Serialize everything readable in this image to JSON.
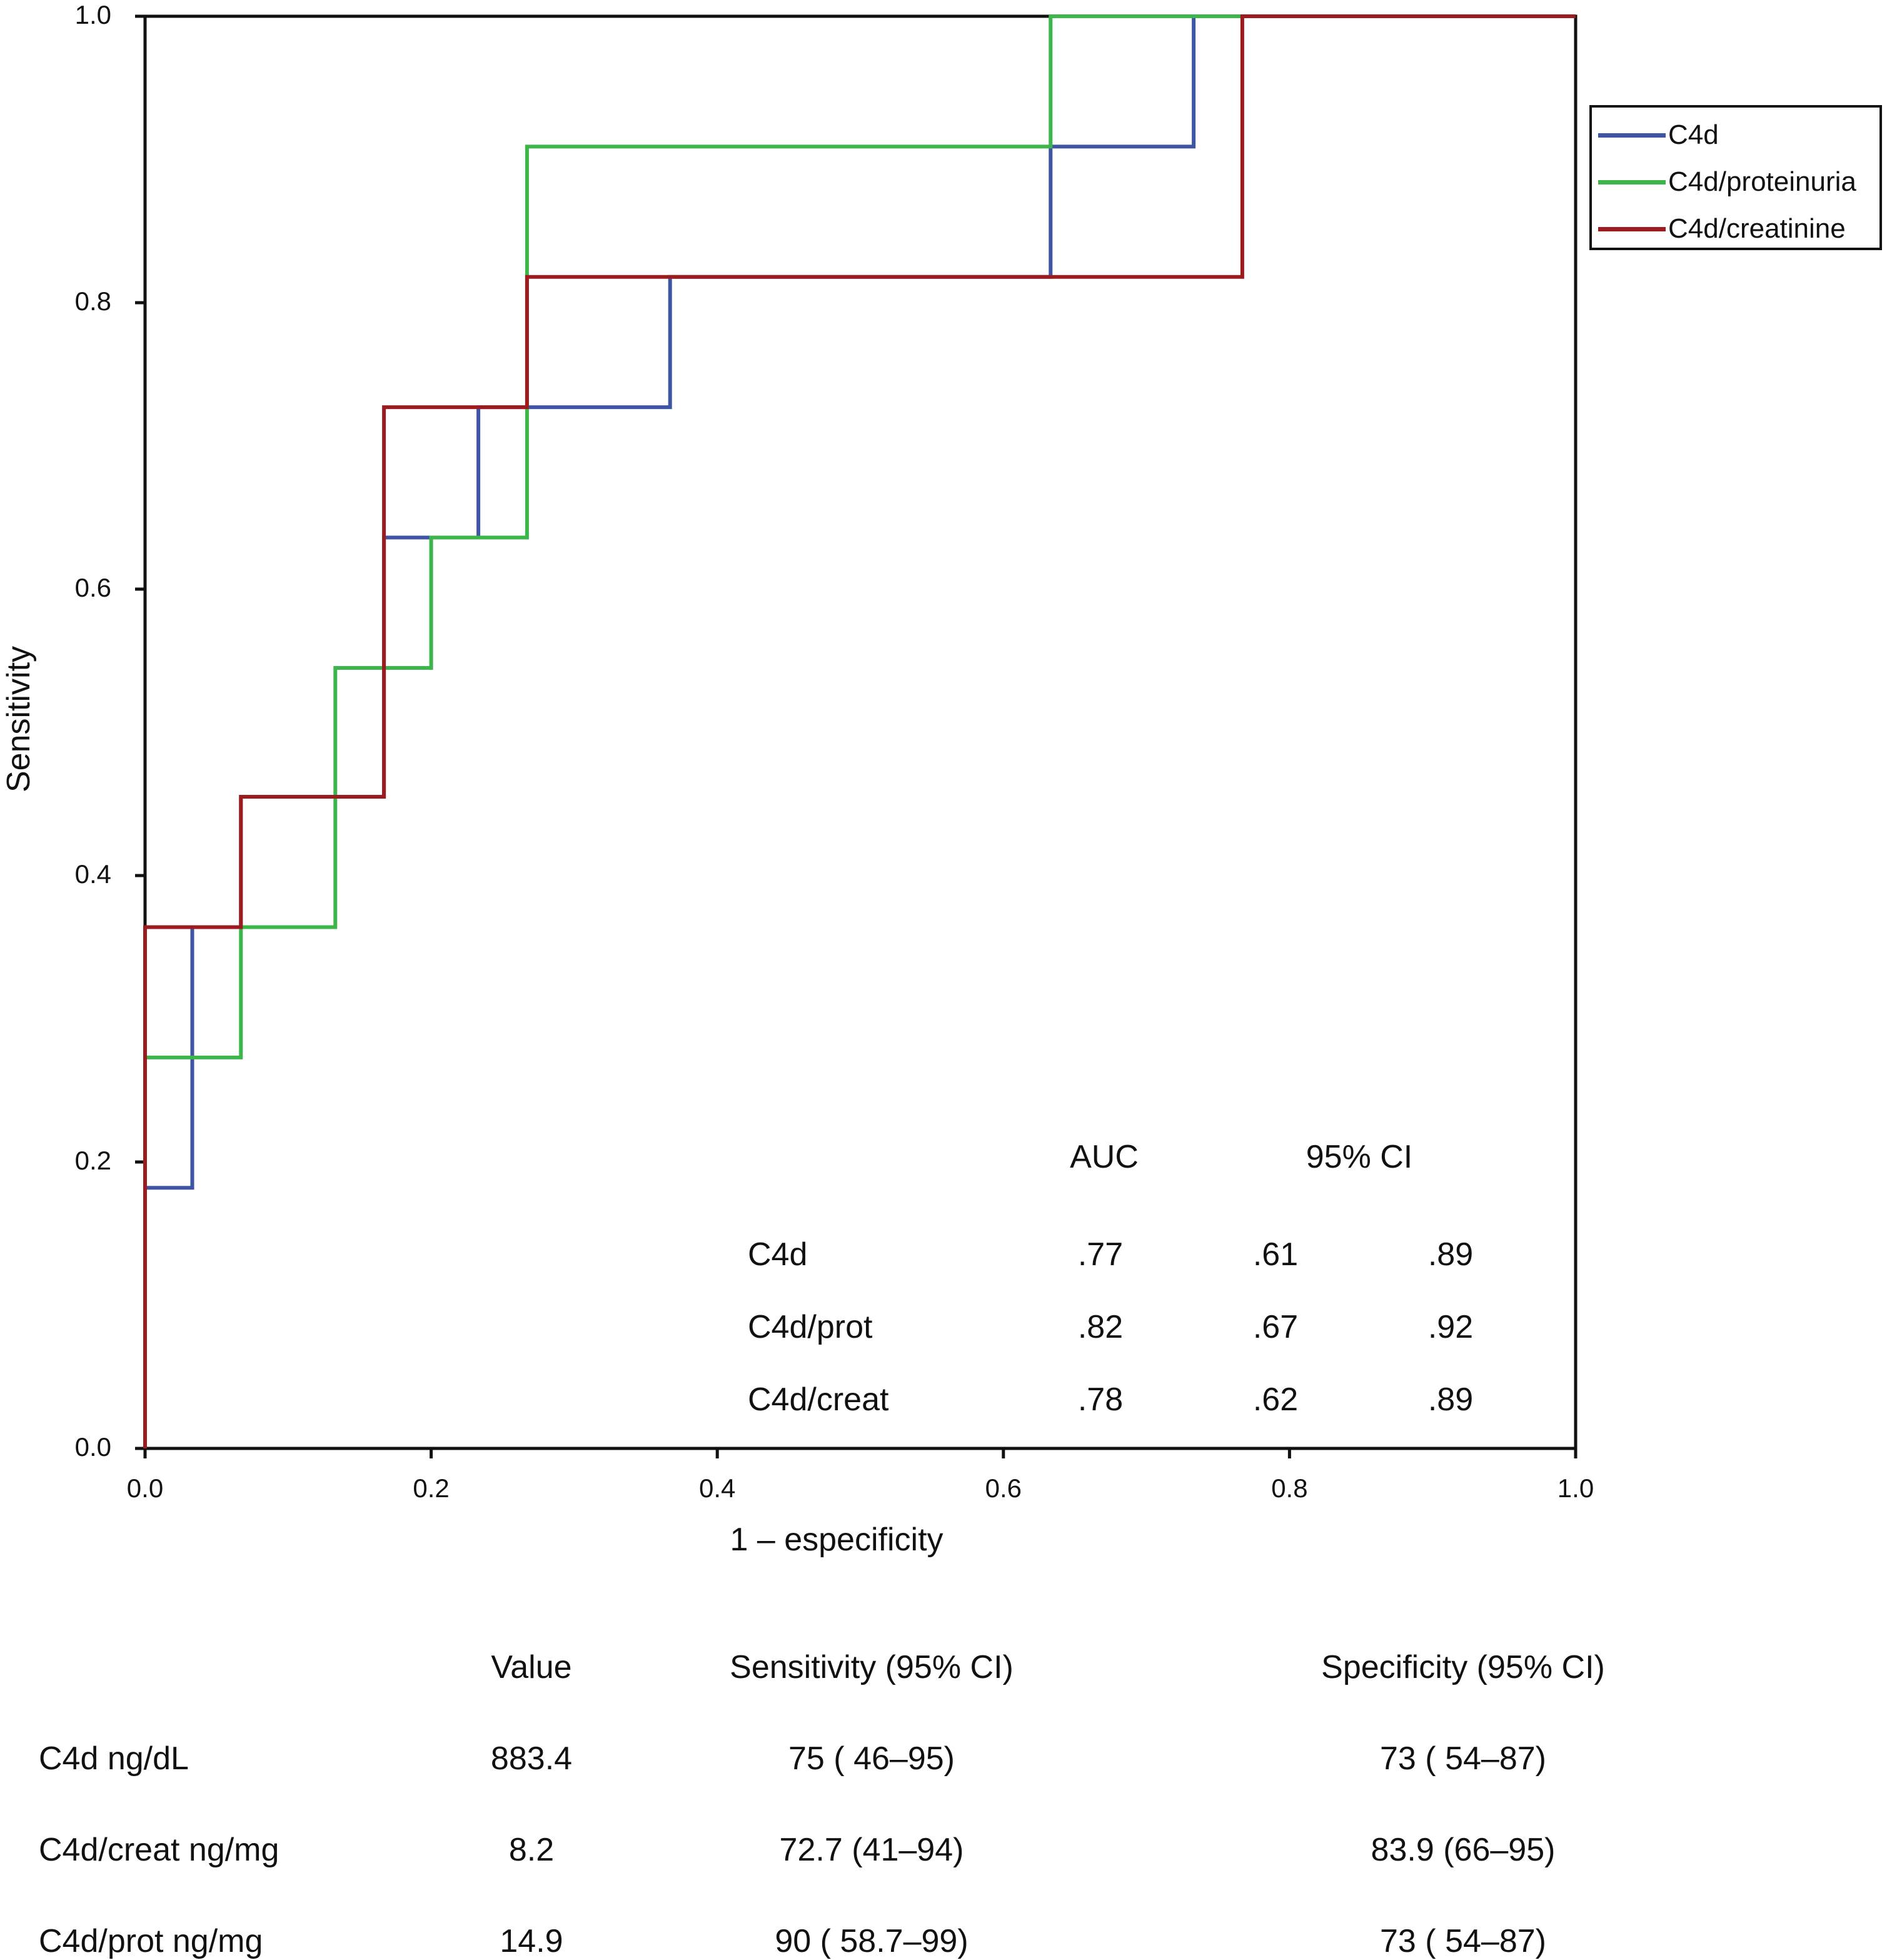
{
  "chart_data": {
    "type": "line",
    "step": true,
    "xlabel": "1 – especificity",
    "ylabel": "Sensitivity",
    "xlim": [
      0,
      1
    ],
    "ylim": [
      0,
      1
    ],
    "xticks": [
      "0.0",
      "0.2",
      "0.4",
      "0.6",
      "0.8",
      "1.0"
    ],
    "yticks": [
      "0.0",
      "0.2",
      "0.4",
      "0.6",
      "0.8",
      "1.0"
    ],
    "grid": false,
    "legend_position": "right, outside top",
    "series": [
      {
        "name": "C4d",
        "color": "#3e55a3",
        "x": [
          0,
          0,
          0.033,
          0.033,
          0.067,
          0.067,
          0.167,
          0.167,
          0.233,
          0.233,
          0.367,
          0.367,
          0.633,
          0.633,
          0.733,
          0.733,
          1
        ],
        "y": [
          0,
          0.182,
          0.182,
          0.364,
          0.364,
          0.455,
          0.455,
          0.636,
          0.636,
          0.727,
          0.727,
          0.818,
          0.818,
          0.909,
          0.909,
          1,
          1
        ]
      },
      {
        "name": "C4d/proteinuria",
        "color": "#3cb54a",
        "x": [
          0,
          0,
          0.067,
          0.067,
          0.133,
          0.133,
          0.2,
          0.2,
          0.267,
          0.267,
          0.633,
          0.633,
          1
        ],
        "y": [
          0,
          0.273,
          0.273,
          0.364,
          0.364,
          0.545,
          0.545,
          0.636,
          0.636,
          0.909,
          0.909,
          1,
          1
        ]
      },
      {
        "name": "C4d/creatinine",
        "color": "#9b1b1f",
        "x": [
          0,
          0,
          0.067,
          0.067,
          0.167,
          0.167,
          0.267,
          0.267,
          0.767,
          0.767,
          1
        ],
        "y": [
          0,
          0.364,
          0.364,
          0.455,
          0.455,
          0.727,
          0.727,
          0.818,
          0.818,
          1,
          1
        ]
      }
    ],
    "auc_table": {
      "headers": {
        "auc": "AUC",
        "ci": "95% CI"
      },
      "rows": [
        {
          "label": "C4d",
          "auc": ".77",
          "lo": ".61",
          "hi": ".89"
        },
        {
          "label": "C4d/prot",
          "auc": ".82",
          "lo": ".67",
          "hi": ".92"
        },
        {
          "label": "C4d/creat",
          "auc": ".78",
          "lo": ".62",
          "hi": ".89"
        }
      ]
    }
  },
  "cutoff_table": {
    "headers": [
      "",
      "Value",
      "Sensitivity (95% CI)",
      "Specificity (95% CI)"
    ],
    "rows": [
      [
        "C4d ng/dL",
        "883.4",
        "75 ( 46–95)",
        "73 ( 54–87)"
      ],
      [
        "C4d/creat ng/mg",
        "8.2",
        "72.7 (41–94)",
        "83.9 (66–95)"
      ],
      [
        "C4d/prot ng/mg",
        "14.9",
        "90 ( 58.7–99)",
        "73 ( 54–87)"
      ]
    ]
  }
}
